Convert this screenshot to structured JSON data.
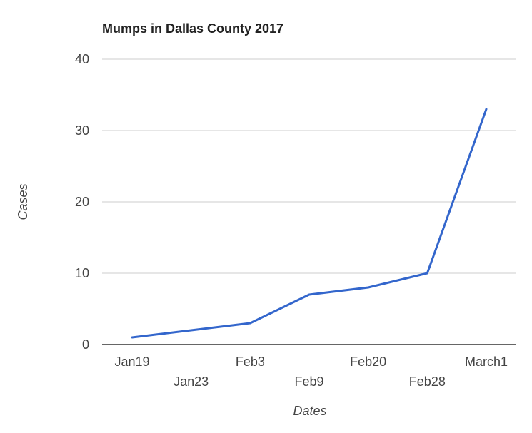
{
  "chart_data": {
    "type": "line",
    "title": "Mumps in Dallas County 2017",
    "xlabel": "Dates",
    "ylabel": "Cases",
    "categories": [
      "Jan19",
      "Jan23",
      "Feb3",
      "Feb9",
      "Feb20",
      "Feb28",
      "March1"
    ],
    "series": [
      {
        "values": [
          1,
          2,
          3,
          7,
          8,
          10,
          33
        ]
      }
    ],
    "ylim": [
      0,
      40
    ],
    "yticks": [
      "0",
      "10",
      "20",
      "30",
      "40"
    ],
    "grid": true,
    "legend": "none",
    "colors": {
      "series": "#3366cc",
      "grid": "#cccccc",
      "baseline": "#333333"
    }
  }
}
